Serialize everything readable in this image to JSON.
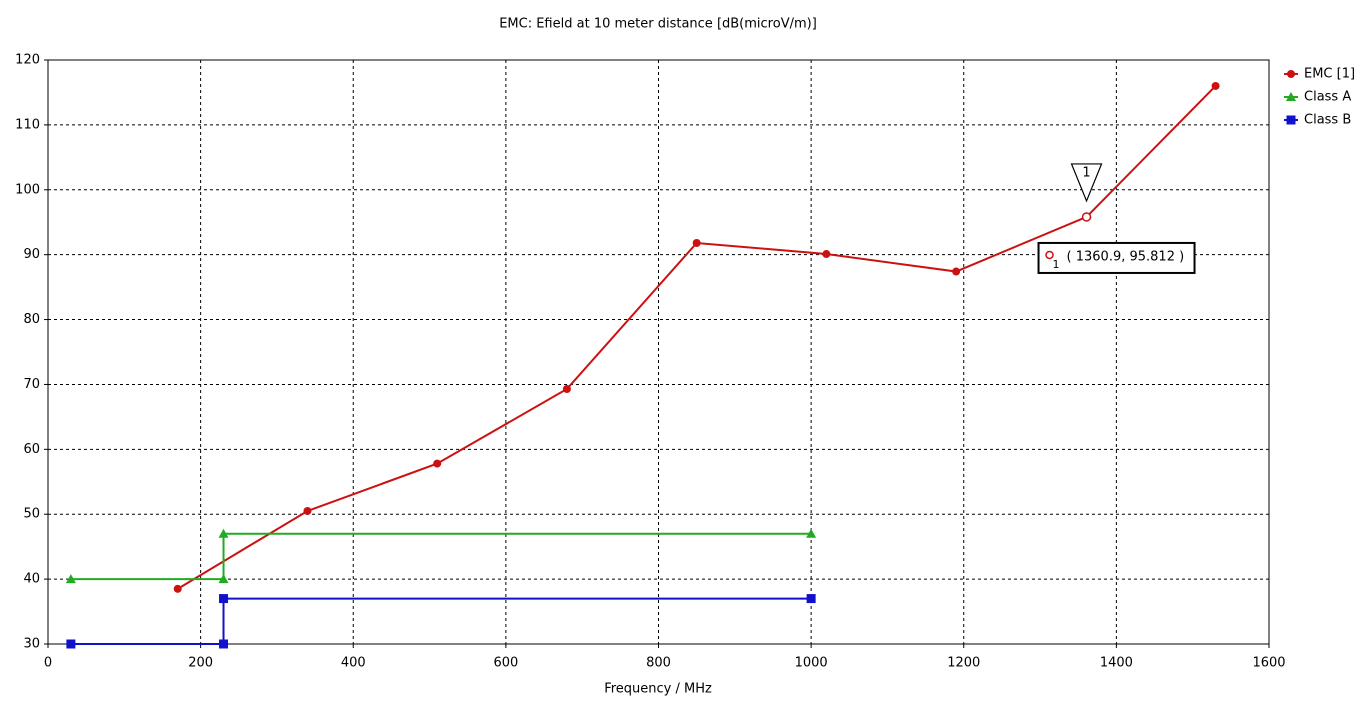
{
  "chart_data": {
    "type": "line",
    "title": "EMC: Efield at 10 meter distance [dB(microV/m)]",
    "x_label": "Frequency / MHz",
    "xlim": [
      0,
      1600
    ],
    "xticks": [
      0,
      200,
      400,
      600,
      800,
      1000,
      1200,
      1400,
      1600
    ],
    "ylim": [
      30,
      120
    ],
    "yticks": [
      30,
      40,
      50,
      60,
      70,
      80,
      90,
      100,
      110,
      120
    ],
    "grid": true,
    "legend": "right",
    "series": [
      {
        "name": "EMC [1]",
        "color": "#cc1111",
        "marker": "circle",
        "x": [
          170,
          340,
          510,
          680,
          850,
          1020,
          1190,
          1360.9,
          1530
        ],
        "values": [
          38.5,
          50.5,
          57.8,
          69.3,
          91.8,
          90.1,
          87.4,
          95.812,
          116
        ]
      },
      {
        "name": "Class A",
        "color": "#22aa22",
        "marker": "triangle",
        "x": [
          30,
          230,
          230,
          1000
        ],
        "values": [
          40,
          40,
          47,
          47
        ]
      },
      {
        "name": "Class B",
        "color": "#1111cc",
        "marker": "square",
        "x": [
          30,
          230,
          230,
          1000
        ],
        "values": [
          30,
          30,
          37,
          37
        ]
      }
    ],
    "marker": {
      "id": "1",
      "x": 1360.9,
      "y": 95.812,
      "label": "( 1360.9, 95.812 )"
    }
  }
}
